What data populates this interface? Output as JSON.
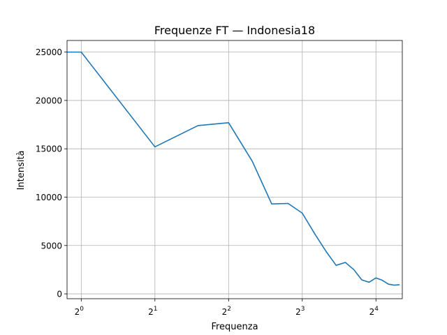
{
  "chart_data": {
    "type": "line",
    "title": "Frequenze FT — Indonesia18",
    "xlabel": "Frequenza",
    "ylabel": "Intensità",
    "x_scale": "log2",
    "xlim": [
      0.875,
      20.5
    ],
    "ylim": [
      -500,
      26200
    ],
    "grid": true,
    "x_ticks": [
      {
        "base": "2",
        "exp": "0",
        "value": 1
      },
      {
        "base": "2",
        "exp": "1",
        "value": 2
      },
      {
        "base": "2",
        "exp": "2",
        "value": 4
      },
      {
        "base": "2",
        "exp": "3",
        "value": 8
      },
      {
        "base": "2",
        "exp": "4",
        "value": 16
      }
    ],
    "y_ticks": [
      0,
      5000,
      10000,
      15000,
      20000,
      25000
    ],
    "series": [
      {
        "color": "#1f77b4",
        "x": [
          0.5,
          1,
          2,
          3,
          4,
          5,
          6,
          7,
          8,
          9,
          10,
          11,
          12,
          13,
          14,
          15,
          16,
          17,
          18,
          19,
          20
        ],
        "y": [
          25000,
          25000,
          15200,
          17400,
          17700,
          13700,
          9300,
          9350,
          8350,
          6200,
          4400,
          2950,
          3250,
          2500,
          1450,
          1200,
          1650,
          1400,
          1000,
          900,
          950
        ]
      }
    ]
  }
}
